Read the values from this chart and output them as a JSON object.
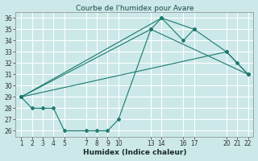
{
  "title": "Courbe de l'humidex pour Avare",
  "xlabel": "Humidex (Indice chaleur)",
  "background_color": "#cce8e8",
  "grid_color": "#ffffff",
  "line_color": "#1a7a6e",
  "series": [
    {
      "x": [
        1,
        13,
        22
      ],
      "y": [
        29,
        35,
        31
      ]
    },
    {
      "x": [
        1,
        14,
        17
      ],
      "y": [
        29,
        36,
        35
      ]
    },
    {
      "x": [
        1,
        20,
        22
      ],
      "y": [
        29,
        33,
        31
      ]
    },
    {
      "x": [
        1,
        2,
        3,
        4,
        5,
        7,
        8,
        9,
        10,
        13,
        14,
        16,
        17,
        20,
        21,
        22
      ],
      "y": [
        29,
        28,
        28,
        28,
        26,
        26,
        26,
        26,
        27,
        35,
        36,
        34,
        35,
        33,
        32,
        31
      ]
    }
  ],
  "xlim": [
    0.5,
    22.5
  ],
  "ylim": [
    25.5,
    36.5
  ],
  "xticks": [
    1,
    2,
    3,
    4,
    5,
    7,
    8,
    9,
    10,
    13,
    14,
    16,
    17,
    20,
    21,
    22
  ],
  "yticks": [
    26,
    27,
    28,
    29,
    30,
    31,
    32,
    33,
    34,
    35,
    36
  ],
  "title_fontsize": 6.5,
  "xlabel_fontsize": 6.5,
  "tick_fontsize": 5.5
}
